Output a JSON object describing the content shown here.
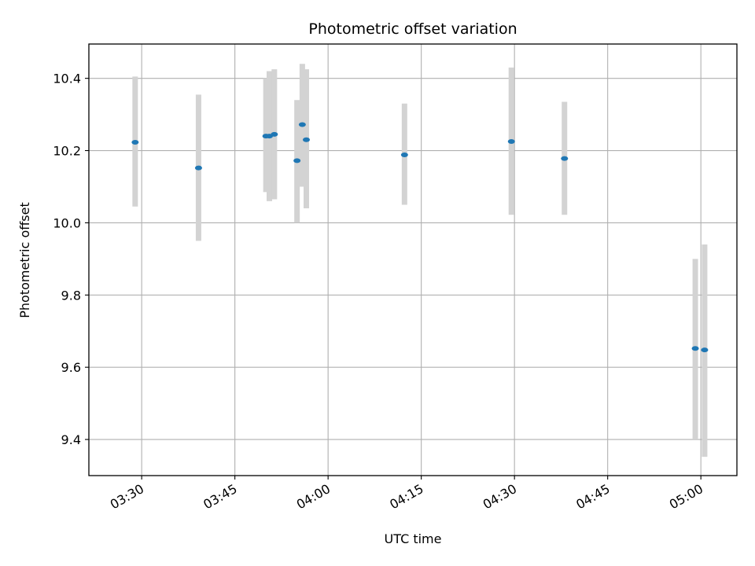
{
  "chart_data": {
    "type": "scatter",
    "title": "Photometric offset variation",
    "xlabel": "UTC time",
    "ylabel": "Photometric offset",
    "x_unit": "UTC time of day (minutes past midnight)",
    "xlim": [
      201.5,
      305.8
    ],
    "ylim": [
      9.3,
      10.495
    ],
    "x_ticks": [
      {
        "value": 210,
        "label": "03:30"
      },
      {
        "value": 225,
        "label": "03:45"
      },
      {
        "value": 240,
        "label": "04:00"
      },
      {
        "value": 255,
        "label": "04:15"
      },
      {
        "value": 270,
        "label": "04:30"
      },
      {
        "value": 285,
        "label": "04:45"
      },
      {
        "value": 300,
        "label": "05:00"
      }
    ],
    "y_ticks": [
      {
        "value": 9.4,
        "label": "9.4"
      },
      {
        "value": 9.6,
        "label": "9.6"
      },
      {
        "value": 9.8,
        "label": "9.8"
      },
      {
        "value": 10.0,
        "label": "10.0"
      },
      {
        "value": 10.2,
        "label": "10.2"
      },
      {
        "value": 10.4,
        "label": "10.4"
      }
    ],
    "grid": true,
    "colors": {
      "points": "#1f77b4",
      "errorbars": "#d3d3d3",
      "grid": "#b0b0b0"
    },
    "points": [
      {
        "x": 208.95,
        "y": 10.223,
        "err_low": 10.045,
        "err_high": 10.405
      },
      {
        "x": 219.15,
        "y": 10.152,
        "err_low": 9.95,
        "err_high": 10.355
      },
      {
        "x": 230.0,
        "y": 10.24,
        "err_low": 10.085,
        "err_high": 10.4
      },
      {
        "x": 230.55,
        "y": 10.24,
        "err_low": 10.06,
        "err_high": 10.42
      },
      {
        "x": 231.35,
        "y": 10.245,
        "err_low": 10.065,
        "err_high": 10.425
      },
      {
        "x": 235.0,
        "y": 10.172,
        "err_low": 10.0,
        "err_high": 10.34
      },
      {
        "x": 235.85,
        "y": 10.272,
        "err_low": 10.1,
        "err_high": 10.44
      },
      {
        "x": 236.5,
        "y": 10.23,
        "err_low": 10.04,
        "err_high": 10.425
      },
      {
        "x": 252.3,
        "y": 10.188,
        "err_low": 10.05,
        "err_high": 10.33
      },
      {
        "x": 269.5,
        "y": 10.225,
        "err_low": 10.022,
        "err_high": 10.43
      },
      {
        "x": 278.05,
        "y": 10.178,
        "err_low": 10.022,
        "err_high": 10.335
      },
      {
        "x": 299.1,
        "y": 9.652,
        "err_low": 9.4,
        "err_high": 9.9
      },
      {
        "x": 300.6,
        "y": 9.648,
        "err_low": 9.352,
        "err_high": 9.94
      }
    ]
  }
}
